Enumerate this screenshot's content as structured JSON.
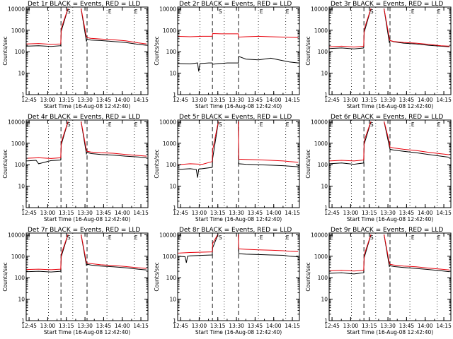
{
  "colors": {
    "events": "#000000",
    "lld": "#e8000b",
    "frame": "#000000"
  },
  "shared": {
    "xlabel": "Start Time (16-Aug-08 12:42:40)",
    "ylabel": "Counts/sec",
    "xticks": [
      {
        "label": "12:45",
        "min": 2.33
      },
      {
        "label": "13:00",
        "min": 17.33
      },
      {
        "label": "13:15",
        "min": 32.33
      },
      {
        "label": "13:30",
        "min": 47.33
      },
      {
        "label": "13:45",
        "min": 62.33
      },
      {
        "label": "14:00",
        "min": 77.33
      },
      {
        "label": "14:15",
        "min": 92.33
      }
    ],
    "yticks": [
      {
        "label": "1",
        "v": 1
      },
      {
        "label": "10",
        "v": 10
      },
      {
        "label": "100",
        "v": 100
      },
      {
        "label": "1000",
        "v": 1000
      },
      {
        "label": "10000",
        "v": 10000
      }
    ],
    "xlim": [
      0,
      98
    ],
    "ylim": [
      1,
      12000
    ],
    "yscale": "log",
    "markers": {
      "dotted": [
        18,
        37.5,
        65,
        87
      ],
      "dashed": [
        28,
        49
      ],
      "letters": [
        {
          "text": "E",
          "min": 0.5
        },
        {
          "text": "S",
          "min": 33
        },
        {
          "text": "E",
          "min": 66
        },
        {
          "text": "E",
          "min": 87
        }
      ]
    }
  },
  "chart_data": [
    {
      "type": "line",
      "title": "Det 1r BLACK = Events, RED = LLD",
      "xlabel": "Start Time (16-Aug-08 12:42:40)",
      "ylabel": "Counts/sec",
      "ylim": [
        1,
        12000
      ],
      "yscale": "log",
      "series": [
        {
          "name": "Events",
          "x": [
            0,
            10,
            20,
            27.8,
            28.2,
            34,
            37,
            40,
            44,
            48.5,
            49,
            52,
            60,
            70,
            80,
            90,
            97
          ],
          "values": [
            180,
            190,
            175,
            190,
            900,
            12000,
            12000,
            12000,
            12000,
            300,
            380,
            350,
            330,
            300,
            270,
            220,
            200
          ]
        },
        {
          "name": "LLD",
          "x": [
            0,
            10,
            20,
            27.8,
            28.2,
            34,
            37,
            40,
            44,
            48.5,
            49,
            52,
            60,
            70,
            80,
            90,
            97
          ],
          "values": [
            230,
            240,
            220,
            230,
            1200,
            12000,
            12000,
            12000,
            12000,
            500,
            450,
            420,
            390,
            360,
            320,
            260,
            230
          ]
        }
      ]
    },
    {
      "type": "line",
      "title": "Det 2r BLACK = Events, RED = LLD",
      "xlabel": "Start Time (16-Aug-08 12:42:40)",
      "ylabel": "Counts/sec",
      "ylim": [
        1,
        12000
      ],
      "yscale": "log",
      "series": [
        {
          "name": "Events",
          "x": [
            0,
            10,
            16,
            17,
            18,
            25,
            27.8,
            28.2,
            33,
            40,
            48.8,
            49.2,
            55,
            65,
            75,
            85,
            90,
            97
          ],
          "values": [
            28,
            27,
            30,
            12,
            28,
            30,
            30,
            26,
            28,
            30,
            30,
            60,
            45,
            42,
            50,
            38,
            33,
            30
          ]
        },
        {
          "name": "LLD",
          "x": [
            0,
            10,
            20,
            27.8,
            28.2,
            35,
            48.8,
            49.2,
            55,
            65,
            75,
            85,
            97
          ],
          "values": [
            520,
            500,
            520,
            520,
            700,
            680,
            680,
            480,
            500,
            520,
            500,
            480,
            460
          ]
        }
      ]
    },
    {
      "type": "line",
      "title": "Det 3r BLACK = Events, RED = LLD",
      "xlabel": "Start Time (16-Aug-08 12:42:40)",
      "ylabel": "Counts/sec",
      "ylim": [
        1,
        12000
      ],
      "yscale": "log",
      "series": [
        {
          "name": "Events",
          "x": [
            0,
            10,
            20,
            27.8,
            28.2,
            34,
            37,
            40,
            44,
            48.5,
            49,
            52,
            60,
            70,
            80,
            90,
            97
          ],
          "values": [
            140,
            150,
            135,
            150,
            800,
            12000,
            12000,
            12000,
            12000,
            260,
            330,
            290,
            250,
            230,
            200,
            180,
            170
          ]
        },
        {
          "name": "LLD",
          "x": [
            0,
            10,
            20,
            27.8,
            28.2,
            34,
            37,
            40,
            44,
            48.5,
            49,
            52,
            60,
            70,
            80,
            90,
            97
          ],
          "values": [
            170,
            180,
            165,
            180,
            1100,
            12000,
            12000,
            12000,
            12000,
            420,
            330,
            300,
            270,
            250,
            220,
            190,
            180
          ]
        }
      ]
    },
    {
      "type": "line",
      "title": "Det 4r BLACK = Events, RED = LLD",
      "xlabel": "Start Time (16-Aug-08 12:42:40)",
      "ylabel": "Counts/sec",
      "ylim": [
        1,
        12000
      ],
      "yscale": "log",
      "series": [
        {
          "name": "Events",
          "x": [
            0,
            8,
            10,
            20,
            27.8,
            28.2,
            34,
            37,
            40,
            44,
            48.5,
            49,
            52,
            60,
            70,
            80,
            90,
            97
          ],
          "values": [
            150,
            160,
            110,
            155,
            165,
            850,
            12000,
            12000,
            12000,
            12000,
            320,
            380,
            330,
            300,
            280,
            250,
            230,
            210
          ]
        },
        {
          "name": "LLD",
          "x": [
            0,
            10,
            20,
            27.8,
            28.2,
            34,
            37,
            40,
            44,
            48.5,
            49,
            52,
            60,
            70,
            80,
            90,
            97
          ],
          "values": [
            200,
            210,
            195,
            210,
            1100,
            12000,
            12000,
            12000,
            12000,
            480,
            420,
            390,
            360,
            340,
            300,
            270,
            250
          ]
        }
      ]
    },
    {
      "type": "line",
      "title": "Det 5r BLACK = Events, RED = LLD",
      "xlabel": "Start Time (16-Aug-08 12:42:40)",
      "ylabel": "Counts/sec",
      "ylim": [
        1,
        12000
      ],
      "yscale": "log",
      "series": [
        {
          "name": "Events",
          "x": [
            0,
            10,
            15,
            16,
            17,
            27.8,
            28.2,
            33,
            40,
            48.8,
            49.2,
            55,
            65,
            75,
            85,
            90,
            97
          ],
          "values": [
            60,
            65,
            60,
            25,
            62,
            75,
            200,
            12000,
            12000,
            12000,
            110,
            105,
            100,
            95,
            90,
            85,
            80
          ]
        },
        {
          "name": "LLD",
          "x": [
            0,
            10,
            20,
            27.8,
            28.2,
            33,
            40,
            48.8,
            49.2,
            55,
            65,
            75,
            85,
            90,
            97
          ],
          "values": [
            100,
            110,
            105,
            140,
            500,
            12000,
            12000,
            12000,
            180,
            175,
            170,
            160,
            150,
            140,
            130
          ]
        }
      ]
    },
    {
      "type": "line",
      "title": "Det 6r BLACK = Events, RED = LLD",
      "xlabel": "Start Time (16-Aug-08 12:42:40)",
      "ylabel": "Counts/sec",
      "ylim": [
        1,
        12000
      ],
      "yscale": "log",
      "series": [
        {
          "name": "Events",
          "x": [
            0,
            10,
            20,
            27.8,
            28.2,
            34,
            37,
            40,
            44,
            48.5,
            49,
            52,
            60,
            70,
            80,
            90,
            97
          ],
          "values": [
            110,
            120,
            105,
            120,
            900,
            12000,
            12000,
            12000,
            12000,
            700,
            520,
            480,
            420,
            360,
            300,
            250,
            220
          ]
        },
        {
          "name": "LLD",
          "x": [
            0,
            10,
            20,
            27.8,
            28.2,
            34,
            37,
            40,
            44,
            48.5,
            49,
            52,
            60,
            70,
            80,
            90,
            97
          ],
          "values": [
            150,
            160,
            150,
            165,
            1300,
            12000,
            12000,
            12000,
            12000,
            1100,
            650,
            600,
            520,
            460,
            380,
            320,
            290
          ]
        }
      ]
    },
    {
      "type": "line",
      "title": "Det 7r BLACK = Events, RED = LLD",
      "xlabel": "Start Time (16-Aug-08 12:42:40)",
      "ylabel": "Counts/sec",
      "ylim": [
        1,
        12000
      ],
      "yscale": "log",
      "series": [
        {
          "name": "Events",
          "x": [
            0,
            10,
            20,
            27.8,
            28.2,
            34,
            37,
            40,
            44,
            48.5,
            49,
            52,
            60,
            70,
            80,
            90,
            97
          ],
          "values": [
            190,
            200,
            185,
            200,
            950,
            12000,
            12000,
            12000,
            12000,
            380,
            420,
            390,
            350,
            320,
            290,
            250,
            230
          ]
        },
        {
          "name": "LLD",
          "x": [
            0,
            10,
            20,
            27.8,
            28.2,
            34,
            37,
            40,
            44,
            48.5,
            49,
            52,
            60,
            70,
            80,
            90,
            97
          ],
          "values": [
            240,
            250,
            235,
            250,
            1250,
            12000,
            12000,
            12000,
            12000,
            520,
            480,
            450,
            400,
            370,
            330,
            290,
            270
          ]
        }
      ]
    },
    {
      "type": "line",
      "title": "Det 8r BLACK = Events, RED = LLD",
      "xlabel": "Start Time (16-Aug-08 12:42:40)",
      "ylabel": "Counts/sec",
      "ylim": [
        1,
        12000
      ],
      "yscale": "log",
      "series": [
        {
          "name": "Events",
          "x": [
            0,
            6,
            7,
            8,
            10,
            20,
            27.8,
            28.2,
            33,
            40,
            48.8,
            49.2,
            55,
            65,
            75,
            85,
            90,
            97
          ],
          "values": [
            1000,
            950,
            500,
            1000,
            1050,
            1100,
            1150,
            2500,
            12000,
            12000,
            12000,
            1300,
            1250,
            1200,
            1150,
            1100,
            1000,
            950
          ]
        },
        {
          "name": "LLD",
          "x": [
            0,
            10,
            20,
            27.8,
            28.2,
            33,
            40,
            48.8,
            49.2,
            55,
            65,
            75,
            85,
            90,
            97
          ],
          "values": [
            1400,
            1500,
            1550,
            1600,
            4000,
            12000,
            12000,
            12000,
            2200,
            2100,
            2000,
            1900,
            1800,
            1700,
            1650
          ]
        }
      ]
    },
    {
      "type": "line",
      "title": "Det 9r BLACK = Events, RED = LLD",
      "xlabel": "Start Time (16-Aug-08 12:42:40)",
      "ylabel": "Counts/sec",
      "ylim": [
        1,
        12000
      ],
      "yscale": "log",
      "series": [
        {
          "name": "Events",
          "x": [
            0,
            10,
            20,
            27.8,
            28.2,
            34,
            37,
            40,
            44,
            48.5,
            49,
            52,
            60,
            70,
            80,
            90,
            97
          ],
          "values": [
            160,
            170,
            150,
            170,
            850,
            12000,
            12000,
            12000,
            12000,
            330,
            360,
            330,
            300,
            270,
            240,
            210,
            190
          ]
        },
        {
          "name": "LLD",
          "x": [
            0,
            10,
            20,
            27.8,
            28.2,
            34,
            37,
            40,
            44,
            48.5,
            49,
            52,
            60,
            70,
            80,
            90,
            97
          ],
          "values": [
            210,
            220,
            205,
            220,
            1150,
            12000,
            12000,
            12000,
            12000,
            480,
            420,
            390,
            350,
            320,
            280,
            250,
            230
          ]
        }
      ]
    }
  ]
}
